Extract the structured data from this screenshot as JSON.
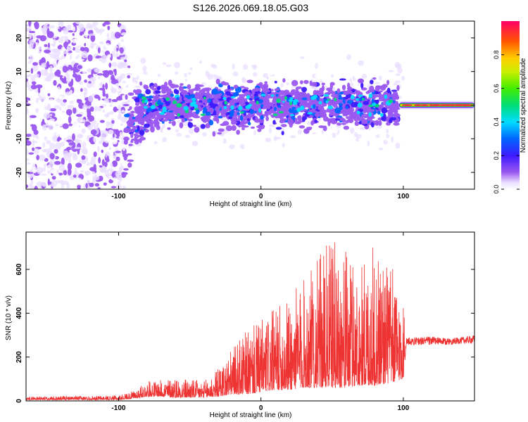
{
  "title": "S126.2026.069.18.05.G03",
  "colors": {
    "snr_line": "#ee3333",
    "dense": "#7a1ff0",
    "light": "#c9a8f7"
  },
  "chart_data": [
    {
      "type": "heatmap",
      "title": "S126.2026.069.18.05.G03",
      "xlabel": "Height of straight line (km)",
      "ylabel": "Frequency (Hz)",
      "xlim": [
        -165,
        150
      ],
      "ylim": [
        -25,
        25
      ],
      "xticks": [
        -100,
        0,
        100
      ],
      "yticks": [
        -20,
        -10,
        0,
        10,
        20
      ],
      "xtick_labels": [
        "-100",
        "0",
        "100"
      ],
      "ytick_labels": [
        "-20",
        "-10",
        "0",
        "10",
        "20"
      ],
      "colorbar": {
        "label": "Normalized spectral amplitude",
        "range": [
          0,
          1
        ],
        "ticks": [
          0.0,
          0.2,
          0.4,
          0.6,
          0.8
        ],
        "tick_labels": [
          "0.0",
          "0.2",
          "0.4",
          "0.6",
          "0.8"
        ],
        "colormap": "rainbow"
      },
      "regions": [
        {
          "x_range": [
            -165,
            -95
          ],
          "freq_range": [
            -25,
            25
          ],
          "amplitude": 0.05,
          "description": "scattered noise"
        },
        {
          "x_range": [
            -95,
            97
          ],
          "freq_range": [
            -8,
            7
          ],
          "amplitude": 0.15,
          "description": "broadened band around 0 Hz"
        },
        {
          "x_range": [
            97,
            150
          ],
          "freq_range": [
            -1,
            1
          ],
          "amplitude": 0.9,
          "description": "narrow strong line at 0 Hz"
        }
      ]
    },
    {
      "type": "line",
      "xlabel": "Height of straight line (km)",
      "ylabel": "SNR (10 * v/v)",
      "xlim": [
        -165,
        150
      ],
      "ylim": [
        0,
        770
      ],
      "xticks": [
        -100,
        0,
        100
      ],
      "yticks": [
        0,
        200,
        400,
        600
      ],
      "xtick_labels": [
        "-100",
        "0",
        "100"
      ],
      "ytick_labels": [
        "0",
        "200",
        "400",
        "600"
      ],
      "series": [
        {
          "name": "SNR",
          "envelope": {
            "x": [
              -165,
              -100,
              -90,
              -80,
              -70,
              -60,
              -50,
              -40,
              -30,
              -20,
              -10,
              0,
              10,
              20,
              30,
              40,
              50,
              60,
              70,
              80,
              90,
              100,
              102,
              110,
              120,
              130,
              140,
              150
            ],
            "min": [
              5,
              5,
              10,
              20,
              20,
              15,
              15,
              15,
              20,
              30,
              30,
              40,
              50,
              50,
              60,
              60,
              60,
              60,
              70,
              70,
              80,
              100,
              250,
              255,
              255,
              255,
              260,
              260
            ],
            "max": [
              20,
              25,
              45,
              90,
              95,
              110,
              100,
              90,
              150,
              240,
              320,
              370,
              420,
              480,
              560,
              650,
              750,
              680,
              620,
              720,
              650,
              480,
              290,
              290,
              295,
              285,
              290,
              300
            ]
          }
        }
      ]
    }
  ]
}
